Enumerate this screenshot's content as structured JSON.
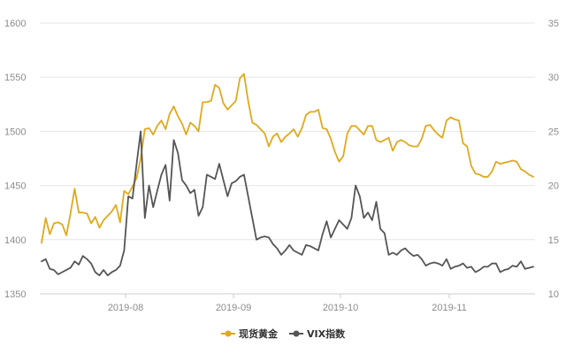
{
  "chart_data": {
    "type": "line",
    "x_ticks": [
      "2019-08",
      "2019-09",
      "2019-10",
      "2019-11"
    ],
    "y_left": {
      "ticks": [
        1350,
        1400,
        1450,
        1500,
        1550,
        1600
      ],
      "range": [
        1350,
        1600
      ]
    },
    "y_right": {
      "ticks": [
        10,
        15,
        20,
        25,
        30,
        35
      ],
      "range": [
        10,
        35
      ]
    },
    "grid": true,
    "legend_position": "bottom-center",
    "series": [
      {
        "name": "现货黄金",
        "axis": "left",
        "color": "#e0a91e",
        "values": [
          1397,
          1420,
          1405,
          1415,
          1416,
          1414,
          1404,
          1424,
          1447,
          1425,
          1425,
          1424,
          1415,
          1421,
          1411,
          1418,
          1422,
          1426,
          1432,
          1416,
          1445,
          1442,
          1449,
          1457,
          1475,
          1502,
          1503,
          1497,
          1505,
          1510,
          1502,
          1516,
          1523,
          1514,
          1507,
          1497,
          1508,
          1505,
          1500,
          1527,
          1527,
          1528,
          1543,
          1540,
          1526,
          1520,
          1524,
          1528,
          1549,
          1553,
          1528,
          1508,
          1506,
          1502,
          1498,
          1486,
          1495,
          1498,
          1490,
          1495,
          1498,
          1502,
          1495,
          1503,
          1515,
          1518,
          1518,
          1520,
          1503,
          1502,
          1493,
          1481,
          1472,
          1477,
          1498,
          1505,
          1505,
          1501,
          1497,
          1505,
          1505,
          1492,
          1490,
          1492,
          1494,
          1482,
          1490,
          1492,
          1490,
          1487,
          1486,
          1486,
          1493,
          1505,
          1506,
          1501,
          1497,
          1494,
          1510,
          1513,
          1511,
          1510,
          1489,
          1486,
          1468,
          1461,
          1460,
          1458,
          1458,
          1463,
          1472,
          1470,
          1471,
          1472,
          1473,
          1472,
          1465,
          1463,
          1460,
          1458
        ]
      },
      {
        "name": "VIX指数",
        "axis": "right",
        "color": "#555555",
        "values": [
          13.0,
          13.2,
          12.3,
          12.2,
          11.8,
          12.0,
          12.2,
          12.4,
          13.0,
          12.7,
          13.5,
          13.2,
          12.8,
          12.0,
          11.7,
          12.2,
          11.7,
          12.0,
          12.2,
          12.6,
          14.0,
          19.0,
          18.8,
          22.0,
          25.0,
          17.0,
          20.0,
          18.0,
          19.5,
          21.0,
          21.9,
          18.6,
          24.2,
          23.0,
          20.5,
          20.0,
          19.3,
          19.6,
          17.2,
          18.0,
          21.0,
          20.8,
          20.6,
          22.0,
          20.5,
          19.0,
          20.2,
          20.4,
          20.8,
          21.0,
          19.0,
          17.0,
          15.0,
          15.2,
          15.3,
          15.2,
          14.6,
          14.2,
          13.6,
          14.0,
          14.5,
          14.0,
          13.8,
          13.6,
          14.5,
          14.4,
          14.2,
          14.0,
          15.5,
          16.7,
          15.2,
          16.0,
          16.8,
          16.4,
          16.0,
          17.0,
          20.0,
          19.0,
          17.0,
          17.5,
          16.8,
          18.5,
          16.0,
          15.6,
          13.6,
          13.8,
          13.6,
          14.0,
          14.2,
          13.8,
          13.5,
          13.6,
          13.2,
          12.6,
          12.8,
          12.9,
          12.8,
          12.6,
          13.2,
          12.3,
          12.5,
          12.6,
          12.8,
          12.4,
          12.5,
          12.0,
          12.2,
          12.5,
          12.5,
          12.8,
          12.8,
          12.0,
          12.2,
          12.3,
          12.6,
          12.5,
          13.0,
          12.3,
          12.4,
          12.5
        ]
      }
    ]
  }
}
